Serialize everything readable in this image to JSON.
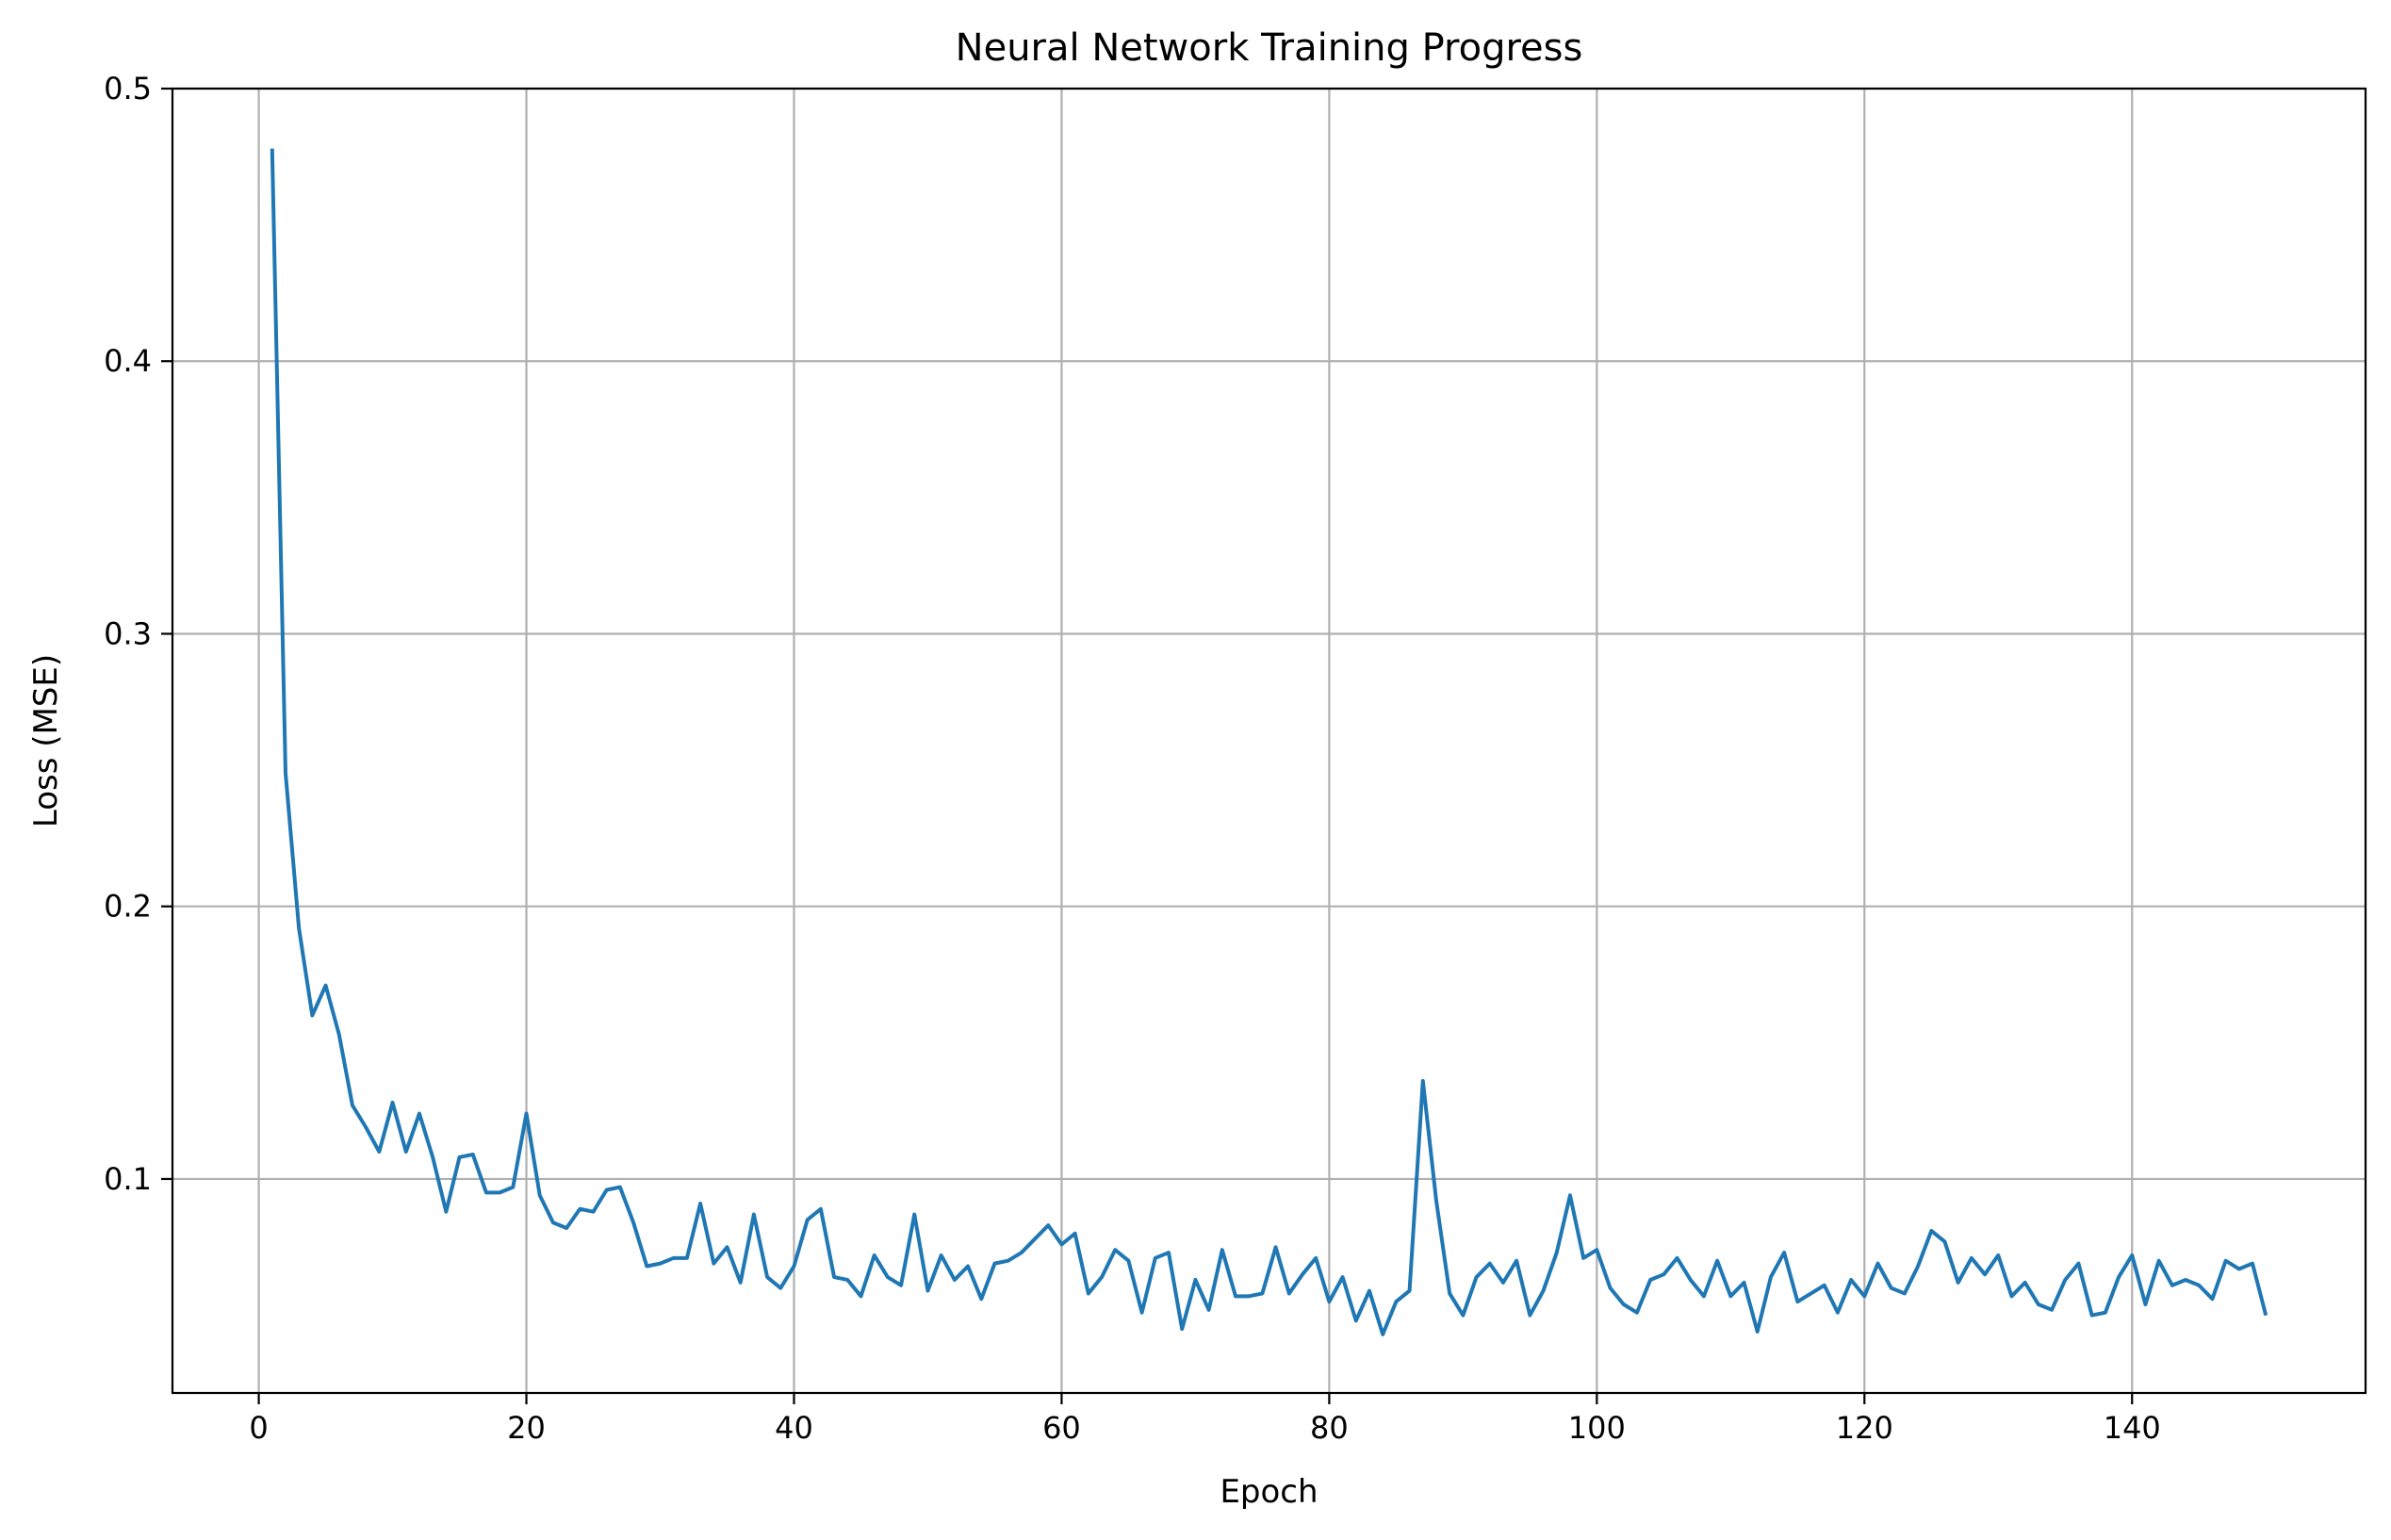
{
  "chart_data": {
    "type": "line",
    "title": "Neural Network Training Progress",
    "xlabel": "Epoch",
    "ylabel": "Loss (MSE)",
    "xlim": [
      -6.45,
      157.45
    ],
    "ylim": [
      0.0215,
      0.5
    ],
    "xticks": [
      0,
      20,
      40,
      60,
      80,
      100,
      120,
      140
    ],
    "yticks": [
      0.1,
      0.2,
      0.3,
      0.4,
      0.5
    ],
    "xtick_labels": [
      "0",
      "20",
      "40",
      "60",
      "80",
      "100",
      "120",
      "140"
    ],
    "ytick_labels": [
      "0.1",
      "0.2",
      "0.3",
      "0.4",
      "0.5"
    ],
    "grid": true,
    "legend": null,
    "line_color": "#1f77b4",
    "series": [
      {
        "x": [
          1,
          2,
          3,
          4,
          5,
          6,
          7,
          8,
          9,
          10,
          11,
          12,
          13,
          14,
          15,
          16,
          17,
          18,
          19,
          20,
          21,
          22,
          23,
          24,
          25,
          26,
          27,
          28,
          29,
          30,
          31,
          32,
          33,
          34,
          35,
          36,
          37,
          38,
          39,
          40,
          41,
          42,
          43,
          44,
          45,
          46,
          47,
          48,
          49,
          50,
          51,
          52,
          53,
          54,
          55,
          56,
          57,
          58,
          59,
          60,
          61,
          62,
          63,
          64,
          65,
          66,
          67,
          68,
          69,
          70,
          71,
          72,
          73,
          74,
          75,
          76,
          77,
          78,
          79,
          80,
          81,
          82,
          83,
          84,
          85,
          86,
          87,
          88,
          89,
          90,
          91,
          92,
          93,
          94,
          95,
          96,
          97,
          98,
          99,
          100,
          101,
          102,
          103,
          104,
          105,
          106,
          107,
          108,
          109,
          110,
          111,
          112,
          113,
          114,
          115,
          116,
          117,
          118,
          119,
          120,
          121,
          122,
          123,
          124,
          125,
          126,
          127,
          128,
          129,
          130,
          131,
          132,
          133,
          134,
          135,
          136,
          137,
          138,
          139,
          140,
          141,
          142,
          143,
          144,
          145,
          146,
          147,
          148,
          149,
          150
        ],
        "values": [
          0.478,
          0.249,
          0.192,
          0.16,
          0.171,
          0.153,
          0.127,
          0.119,
          0.11,
          0.128,
          0.11,
          0.124,
          0.108,
          0.088,
          0.108,
          0.109,
          0.095,
          0.095,
          0.097,
          0.124,
          0.094,
          0.084,
          0.082,
          0.089,
          0.088,
          0.096,
          0.097,
          0.084,
          0.068,
          0.069,
          0.071,
          0.071,
          0.091,
          0.069,
          0.075,
          0.062,
          0.087,
          0.064,
          0.06,
          0.068,
          0.085,
          0.089,
          0.064,
          0.063,
          0.057,
          0.072,
          0.064,
          0.061,
          0.087,
          0.059,
          0.072,
          0.063,
          0.068,
          0.056,
          0.069,
          0.07,
          0.073,
          0.078,
          0.083,
          0.076,
          0.08,
          0.058,
          0.064,
          0.074,
          0.07,
          0.051,
          0.071,
          0.073,
          0.045,
          0.063,
          0.052,
          0.074,
          0.057,
          0.057,
          0.058,
          0.075,
          0.058,
          0.065,
          0.071,
          0.055,
          0.064,
          0.048,
          0.059,
          0.043,
          0.055,
          0.059,
          0.136,
          0.092,
          0.058,
          0.05,
          0.064,
          0.069,
          0.062,
          0.07,
          0.05,
          0.059,
          0.073,
          0.094,
          0.071,
          0.074,
          0.06,
          0.054,
          0.051,
          0.063,
          0.065,
          0.071,
          0.063,
          0.057,
          0.07,
          0.057,
          0.062,
          0.044,
          0.064,
          0.073,
          0.055,
          0.058,
          0.061,
          0.051,
          0.063,
          0.057,
          0.069,
          0.06,
          0.058,
          0.068,
          0.081,
          0.077,
          0.062,
          0.071,
          0.065,
          0.072,
          0.057,
          0.062,
          0.054,
          0.052,
          0.063,
          0.069,
          0.05,
          0.051,
          0.064,
          0.072,
          0.054,
          0.07,
          0.061,
          0.063,
          0.061,
          0.056,
          0.07,
          0.067,
          0.069,
          0.05
        ]
      }
    ]
  }
}
